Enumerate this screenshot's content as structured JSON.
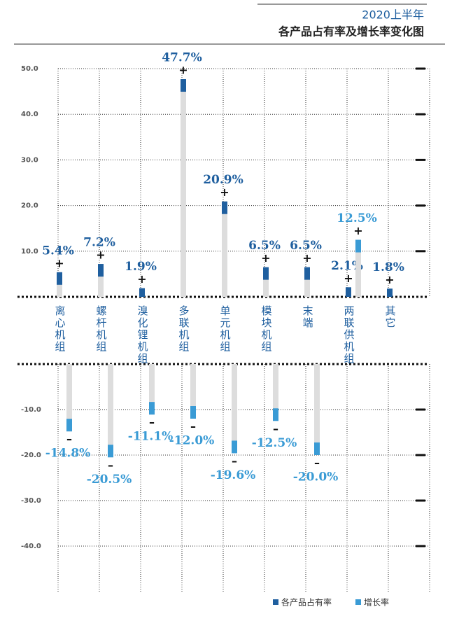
{
  "chart_data": {
    "type": "bar",
    "title": "2020上半年",
    "subtitle": "各产品占有率及增长率变化图",
    "categories": [
      "离心机组",
      "螺杆机组",
      "溴化锂机组",
      "多联机组",
      "单元机组",
      "模块机组",
      "末端",
      "两联供机组",
      "其它"
    ],
    "series": [
      {
        "name": "各产品占有率",
        "color": "#1f5f9f",
        "values": [
          5.4,
          7.2,
          1.9,
          47.7,
          20.9,
          6.5,
          6.5,
          2.1,
          1.8
        ],
        "value_labels": [
          "5.4%",
          "7.2%",
          "1.9%",
          "47.7%",
          "20.9%",
          "6.5%",
          "6.5%",
          "2.1%",
          "1.8%"
        ]
      },
      {
        "name": "增长率",
        "color": "#3a9bd5",
        "values": [
          -14.8,
          -20.5,
          -11.1,
          -12.0,
          -19.6,
          -12.5,
          -20.0,
          12.5,
          null
        ],
        "value_labels": [
          "-14.8%",
          "-20.5%",
          "-11.1%",
          "-12.0%",
          "-19.6%",
          "-12.5%",
          "-20.0%",
          "12.5%",
          null
        ]
      }
    ],
    "ylim": [
      0,
      50
    ],
    "yticks": [
      {
        "value": 10,
        "label": "10.0"
      },
      {
        "value": 20,
        "label": "20.0"
      },
      {
        "value": 30,
        "label": "30.0"
      },
      {
        "value": 40,
        "label": "40.0"
      },
      {
        "value": 50,
        "label": "50.0"
      }
    ],
    "y2lim": [
      -50,
      0
    ],
    "y2ticks": [
      {
        "value": -10,
        "label": "-10.0"
      },
      {
        "value": -20,
        "label": "-20.0"
      },
      {
        "value": -30,
        "label": "-30.0"
      },
      {
        "value": -40,
        "label": "-40.0"
      }
    ],
    "grid": true
  }
}
